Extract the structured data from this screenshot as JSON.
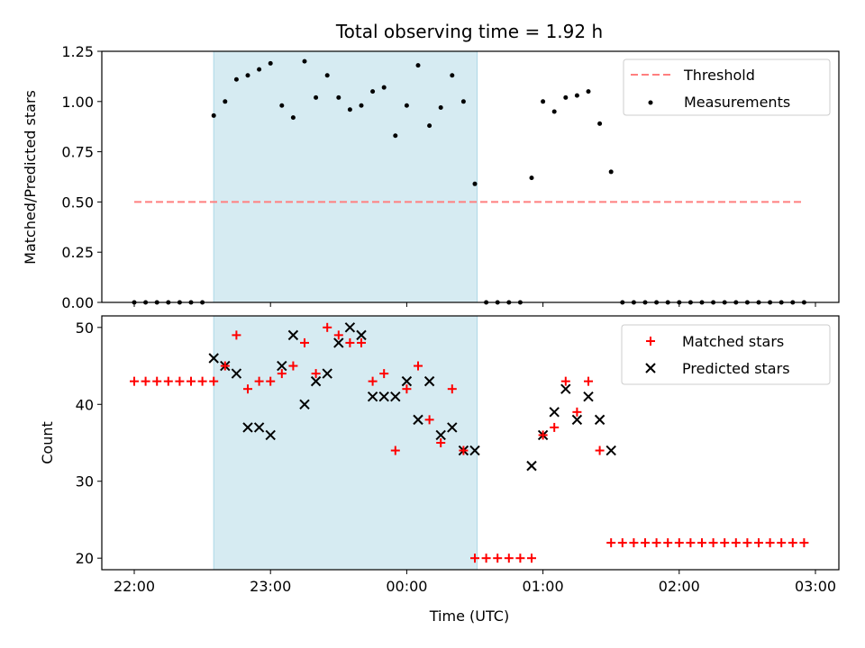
{
  "chart_data": {
    "type": "scatter",
    "title": "Total observing time = 1.92 h",
    "xlabel": "Time (UTC)",
    "x_ticks": [
      "22:00",
      "23:00",
      "00:00",
      "01:00",
      "02:00",
      "03:00"
    ],
    "shaded_span": {
      "start": "22:35",
      "end": "00:31",
      "color": "#add8e6"
    },
    "panels": [
      {
        "ylabel": "Matched/Predicted stars",
        "ylim": [
          0,
          1.25
        ],
        "y_ticks": [
          "0.00",
          "0.25",
          "0.50",
          "0.75",
          "1.00",
          "1.25"
        ],
        "legend": {
          "position": "upper right",
          "entries": [
            "Threshold",
            "Measurements"
          ]
        },
        "threshold": {
          "name": "Threshold",
          "value": 0.5,
          "x_range": [
            "22:00",
            "02:55"
          ],
          "color": "#ff7f7f",
          "style": "dashed"
        },
        "measurements": {
          "name": "Measurements",
          "color": "#000000",
          "x": [
            "22:00",
            "22:05",
            "22:10",
            "22:15",
            "22:20",
            "22:25",
            "22:30",
            "22:35",
            "22:40",
            "22:45",
            "22:50",
            "22:55",
            "23:00",
            "23:05",
            "23:10",
            "23:15",
            "23:20",
            "23:25",
            "23:30",
            "23:35",
            "23:40",
            "23:45",
            "23:50",
            "23:55",
            "00:00",
            "00:05",
            "00:10",
            "00:15",
            "00:20",
            "00:25",
            "00:30",
            "00:35",
            "00:40",
            "00:45",
            "00:50",
            "00:55",
            "01:00",
            "01:05",
            "01:10",
            "01:15",
            "01:20",
            "01:25",
            "01:30",
            "01:35",
            "01:40",
            "01:45",
            "01:50",
            "01:55",
            "02:00",
            "02:05",
            "02:10",
            "02:15",
            "02:20",
            "02:25",
            "02:30",
            "02:35",
            "02:40",
            "02:45",
            "02:50",
            "02:55"
          ],
          "y": [
            0,
            0,
            0,
            0,
            0,
            0,
            0,
            0.93,
            1.0,
            1.11,
            1.13,
            1.16,
            1.19,
            0.98,
            0.92,
            1.2,
            1.02,
            1.13,
            1.02,
            0.96,
            0.98,
            1.05,
            1.07,
            0.83,
            0.98,
            1.18,
            0.88,
            0.97,
            1.13,
            1.0,
            0.59,
            0,
            0,
            0,
            0,
            0.62,
            1.0,
            0.95,
            1.02,
            1.03,
            1.05,
            0.89,
            0.65,
            0,
            0,
            0,
            0,
            0,
            0,
            0,
            0,
            0,
            0,
            0,
            0,
            0,
            0,
            0,
            0,
            0
          ]
        }
      },
      {
        "ylabel": "Count",
        "ylim": [
          18.5,
          51.5
        ],
        "y_ticks": [
          "20",
          "30",
          "40",
          "50"
        ],
        "legend": {
          "position": "upper right",
          "entries": [
            "Matched stars",
            "Predicted stars"
          ]
        },
        "series": [
          {
            "name": "Matched stars",
            "marker": "+",
            "color": "#ff0000",
            "x": [
              "22:00",
              "22:05",
              "22:10",
              "22:15",
              "22:20",
              "22:25",
              "22:30",
              "22:35",
              "22:40",
              "22:45",
              "22:50",
              "22:55",
              "23:00",
              "23:05",
              "23:10",
              "23:15",
              "23:20",
              "23:25",
              "23:30",
              "23:35",
              "23:40",
              "23:45",
              "23:50",
              "23:55",
              "00:00",
              "00:05",
              "00:10",
              "00:15",
              "00:20",
              "00:25",
              "00:30",
              "00:35",
              "00:40",
              "00:45",
              "00:50",
              "00:55",
              "01:00",
              "01:05",
              "01:10",
              "01:15",
              "01:20",
              "01:25",
              "01:30",
              "01:35",
              "01:40",
              "01:45",
              "01:50",
              "01:55",
              "02:00",
              "02:05",
              "02:10",
              "02:15",
              "02:20",
              "02:25",
              "02:30",
              "02:35",
              "02:40",
              "02:45",
              "02:50",
              "02:55"
            ],
            "y": [
              43,
              43,
              43,
              43,
              43,
              43,
              43,
              43,
              45,
              49,
              42,
              43,
              43,
              44,
              45,
              48,
              44,
              50,
              49,
              48,
              48,
              43,
              44,
              34,
              42,
              45,
              38,
              35,
              42,
              34,
              20,
              20,
              20,
              20,
              20,
              20,
              36,
              37,
              43,
              39,
              43,
              34,
              22,
              22,
              22,
              22,
              22,
              22,
              22,
              22,
              22,
              22,
              22,
              22,
              22,
              22,
              22,
              22,
              22,
              22
            ]
          },
          {
            "name": "Predicted stars",
            "marker": "x",
            "color": "#000000",
            "x": [
              "22:35",
              "22:40",
              "22:45",
              "22:50",
              "22:55",
              "23:00",
              "23:05",
              "23:10",
              "23:15",
              "23:20",
              "23:25",
              "23:30",
              "23:35",
              "23:40",
              "23:45",
              "23:50",
              "23:55",
              "00:00",
              "00:05",
              "00:10",
              "00:15",
              "00:20",
              "00:25",
              "00:30",
              "00:55",
              "01:00",
              "01:05",
              "01:10",
              "01:15",
              "01:20",
              "01:25",
              "01:30"
            ],
            "y": [
              46,
              45,
              44,
              37,
              37,
              36,
              45,
              49,
              40,
              43,
              44,
              48,
              50,
              49,
              41,
              41,
              41,
              43,
              38,
              43,
              36,
              37,
              34,
              34,
              32,
              36,
              39,
              42,
              38,
              41,
              38,
              34
            ]
          }
        ]
      }
    ]
  }
}
